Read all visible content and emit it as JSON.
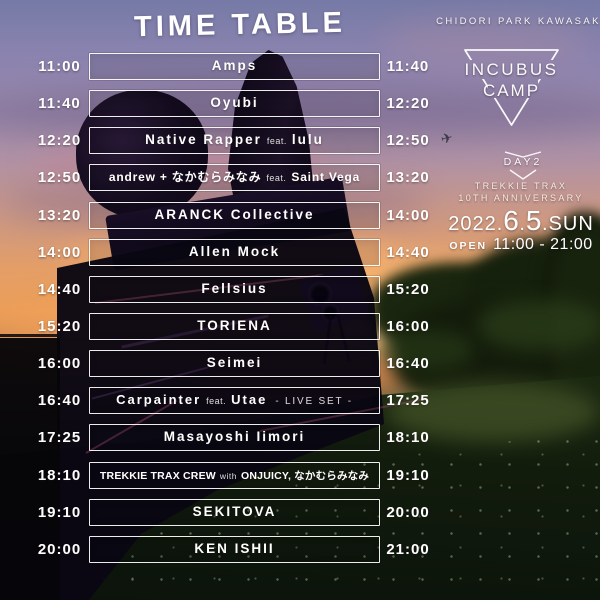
{
  "poster": {
    "title": "TIME TABLE",
    "venue": "CHIDORI PARK KAWASAKI",
    "logo": {
      "line1": "INCUBUS",
      "line2": "CAMP"
    },
    "day_badge": "DAY2",
    "series": {
      "line1": "TREKKIE TRAX",
      "line2": "10TH ANNIVERSARY"
    },
    "date": {
      "parts": [
        {
          "text": "2022.",
          "size": "sm"
        },
        {
          "text": "6",
          "size": "lg"
        },
        {
          "text": ".",
          "size": "sm"
        },
        {
          "text": "5",
          "size": "lg"
        },
        {
          "text": ".",
          "size": "sm"
        },
        {
          "text": "SUN",
          "size": "sm"
        }
      ]
    },
    "open": {
      "label": "OPEN",
      "hours": "11:00 - 21:00"
    }
  },
  "timetable": {
    "rows": [
      {
        "start": "11:00",
        "end": "11:40",
        "parts": [
          {
            "text": "Amps",
            "style": "main"
          }
        ]
      },
      {
        "start": "11:40",
        "end": "12:20",
        "parts": [
          {
            "text": "Oyubi",
            "style": "main"
          }
        ]
      },
      {
        "start": "12:20",
        "end": "12:50",
        "parts": [
          {
            "text": "Native Rapper",
            "style": "main"
          },
          {
            "text": "feat.",
            "style": "small"
          },
          {
            "text": "lulu",
            "style": "main"
          }
        ]
      },
      {
        "start": "12:50",
        "end": "13:20",
        "parts": [
          {
            "text": "andrew + なかむらみなみ",
            "style": "main"
          },
          {
            "text": "feat.",
            "style": "small"
          },
          {
            "text": "Saint Vega",
            "style": "main"
          }
        ]
      },
      {
        "start": "13:20",
        "end": "14:00",
        "parts": [
          {
            "text": "ARANCK Collective",
            "style": "main"
          }
        ]
      },
      {
        "start": "14:00",
        "end": "14:40",
        "parts": [
          {
            "text": "Allen Mock",
            "style": "main"
          }
        ]
      },
      {
        "start": "14:40",
        "end": "15:20",
        "parts": [
          {
            "text": "Fellsius",
            "style": "main"
          }
        ]
      },
      {
        "start": "15:20",
        "end": "16:00",
        "parts": [
          {
            "text": "TORIENA",
            "style": "main"
          }
        ]
      },
      {
        "start": "16:00",
        "end": "16:40",
        "parts": [
          {
            "text": "Seimei",
            "style": "main"
          }
        ]
      },
      {
        "start": "16:40",
        "end": "17:25",
        "parts": [
          {
            "text": "Carpainter",
            "style": "main"
          },
          {
            "text": "feat.",
            "style": "small"
          },
          {
            "text": "Utae",
            "style": "main"
          },
          {
            "text": "- LIVE SET -",
            "style": "note"
          }
        ]
      },
      {
        "start": "17:25",
        "end": "18:10",
        "parts": [
          {
            "text": "Masayoshi Iimori",
            "style": "main"
          }
        ]
      },
      {
        "start": "18:10",
        "end": "19:10",
        "parts": [
          {
            "text": "TREKKIE TRAX CREW",
            "style": "main"
          },
          {
            "text": "with",
            "style": "small"
          },
          {
            "text": "ONJUICY, なかむらみなみ",
            "style": "main"
          }
        ]
      },
      {
        "start": "19:10",
        "end": "20:00",
        "parts": [
          {
            "text": "SEKITOVA",
            "style": "main"
          }
        ]
      },
      {
        "start": "20:00",
        "end": "21:00",
        "parts": [
          {
            "text": "KEN ISHII",
            "style": "main"
          }
        ]
      }
    ]
  },
  "icons": {
    "plane": "✈"
  },
  "colors": {
    "text_white": "#ffffff",
    "sky_top_purple": "#767aa6",
    "sunset_orange": "#eb9e58",
    "grass_green": "#3c4e22",
    "silhouette_dark": "#0a0713",
    "box_border": "rgba(255,255,255,0.93)"
  }
}
